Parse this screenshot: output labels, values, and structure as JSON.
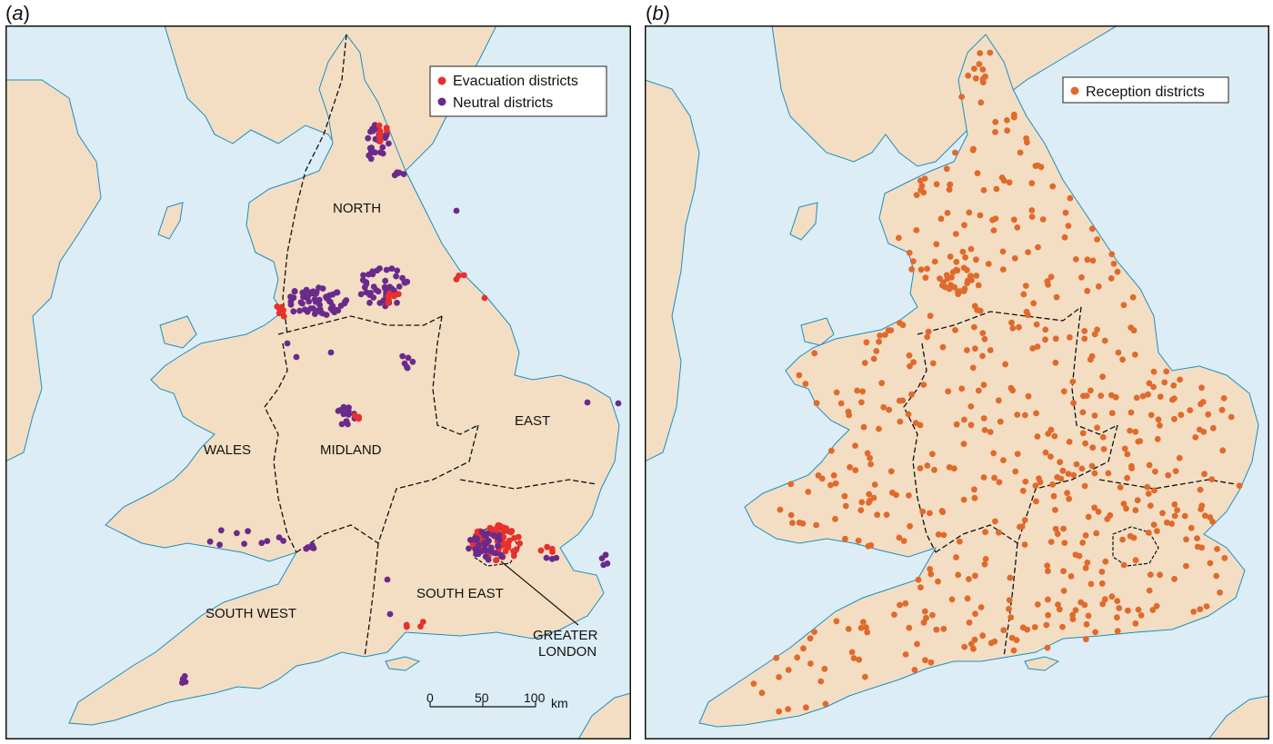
{
  "panels": [
    {
      "letter_open": "(",
      "letter": "a",
      "letter_close": ")",
      "legend": [
        {
          "label": "Evacuation districts",
          "color": "#e8302d"
        },
        {
          "label": "Neutral districts",
          "color": "#6a2a8c"
        }
      ],
      "regions": [
        "NORTH",
        "EAST",
        "WALES",
        "MIDLAND",
        "SOUTH WEST",
        "SOUTH EAST"
      ],
      "callout": [
        "GREATER",
        "LONDON"
      ],
      "scale": {
        "ticks": [
          "0",
          "50",
          "100"
        ],
        "unit": "km"
      }
    },
    {
      "letter_open": "(",
      "letter": "b",
      "letter_close": ")",
      "legend": [
        {
          "label": "Reception districts",
          "color": "#e06a2b"
        }
      ]
    }
  ],
  "colors": {
    "sea": "#dcedf5",
    "land": "#f3dec4",
    "coast": "#1b8ec0",
    "boundary": "#111111",
    "frame": "#111111"
  }
}
